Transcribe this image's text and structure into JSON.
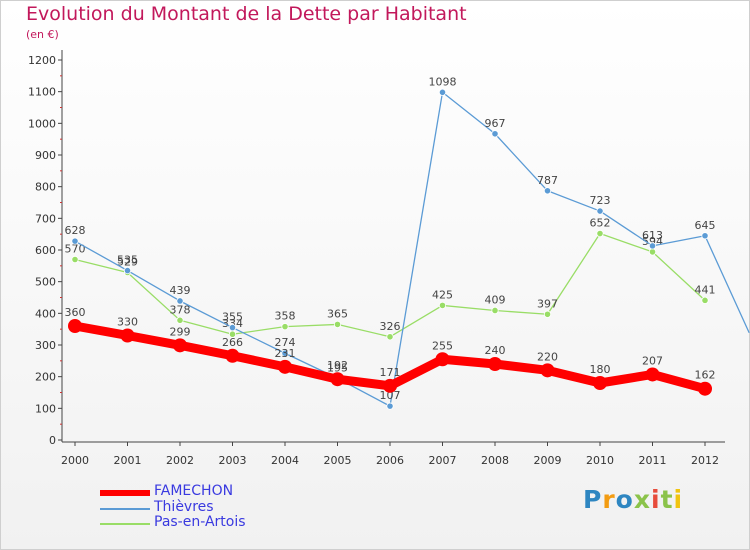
{
  "title": "Evolution du Montant de la Dette par Habitant",
  "subtitle": "(en €)",
  "logo": {
    "text": "Proxiti",
    "colors": [
      "#2e86c1",
      "#f39c12",
      "#2e86c1",
      "#8bc34a",
      "#e74c3c",
      "#8bc34a",
      "#f1c40f"
    ]
  },
  "chart_data": {
    "type": "line",
    "categories": [
      "2000",
      "2001",
      "2002",
      "2003",
      "2004",
      "2005",
      "2006",
      "2007",
      "2008",
      "2009",
      "2010",
      "2011",
      "2012"
    ],
    "ylim": [
      0,
      1200
    ],
    "yticks": [
      0,
      100,
      200,
      300,
      400,
      500,
      600,
      700,
      800,
      900,
      1000,
      1100,
      1200
    ],
    "grid": false,
    "legend_position": "bottom-left",
    "series": [
      {
        "name": "FAMECHON",
        "color": "#ff0000",
        "values": [
          360,
          330,
          299,
          266,
          231,
          192,
          171,
          255,
          240,
          220,
          180,
          207,
          162
        ],
        "labels": [
          "360",
          "330",
          "299",
          "266",
          "231",
          "192",
          "171",
          "255",
          "240",
          "220",
          "180",
          "207",
          "162"
        ]
      },
      {
        "name": "Thièvres",
        "color": "#5b9bd5",
        "values": [
          628,
          535,
          439,
          355,
          274,
          195,
          107,
          1098,
          967,
          787,
          723,
          613,
          645
        ],
        "labels": [
          "628",
          "535",
          "439",
          "355",
          "274",
          "195",
          "107",
          "1098",
          "967",
          "787",
          "723",
          "613",
          "645"
        ],
        "trailing_value": 340
      },
      {
        "name": "Pas-en-Artois",
        "color": "#99dd66",
        "values": [
          570,
          529,
          378,
          334,
          358,
          365,
          326,
          425,
          409,
          397,
          652,
          594,
          441
        ],
        "labels": [
          "570",
          "529",
          "378",
          "334",
          "358",
          "365",
          "326",
          "425",
          "409",
          "397",
          "652",
          "594",
          "441"
        ]
      }
    ]
  }
}
